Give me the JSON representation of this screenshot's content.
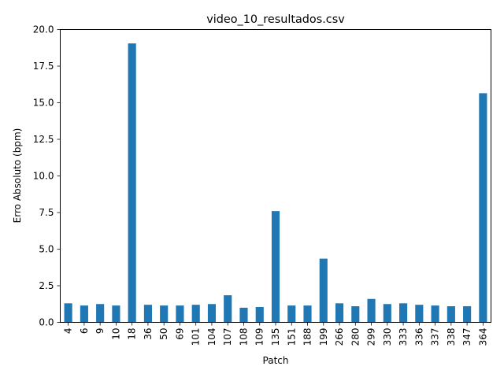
{
  "chart_data": {
    "type": "bar",
    "title": "video_10_resultados.csv",
    "xlabel": "Patch",
    "ylabel": "Erro Absoluto (bpm)",
    "ylim": [
      0,
      20
    ],
    "yticks": [
      "0.0",
      "2.5",
      "5.0",
      "7.5",
      "10.0",
      "12.5",
      "15.0",
      "17.5",
      "20.0"
    ],
    "ytick_values": [
      0,
      2.5,
      5,
      7.5,
      10,
      12.5,
      15,
      17.5,
      20
    ],
    "grid": false,
    "legend": false,
    "bar_color": "#1f77b4",
    "categories": [
      "4",
      "6",
      "9",
      "10",
      "18",
      "36",
      "50",
      "69",
      "101",
      "104",
      "107",
      "108",
      "109",
      "135",
      "151",
      "188",
      "199",
      "266",
      "280",
      "299",
      "330",
      "333",
      "336",
      "337",
      "338",
      "347",
      "364"
    ],
    "values": [
      1.3,
      1.15,
      1.25,
      1.15,
      19.05,
      1.2,
      1.15,
      1.15,
      1.2,
      1.25,
      1.85,
      1.0,
      1.05,
      7.6,
      1.15,
      1.15,
      4.35,
      1.3,
      1.1,
      1.6,
      1.25,
      1.3,
      1.2,
      1.15,
      1.1,
      1.1,
      15.65
    ]
  }
}
